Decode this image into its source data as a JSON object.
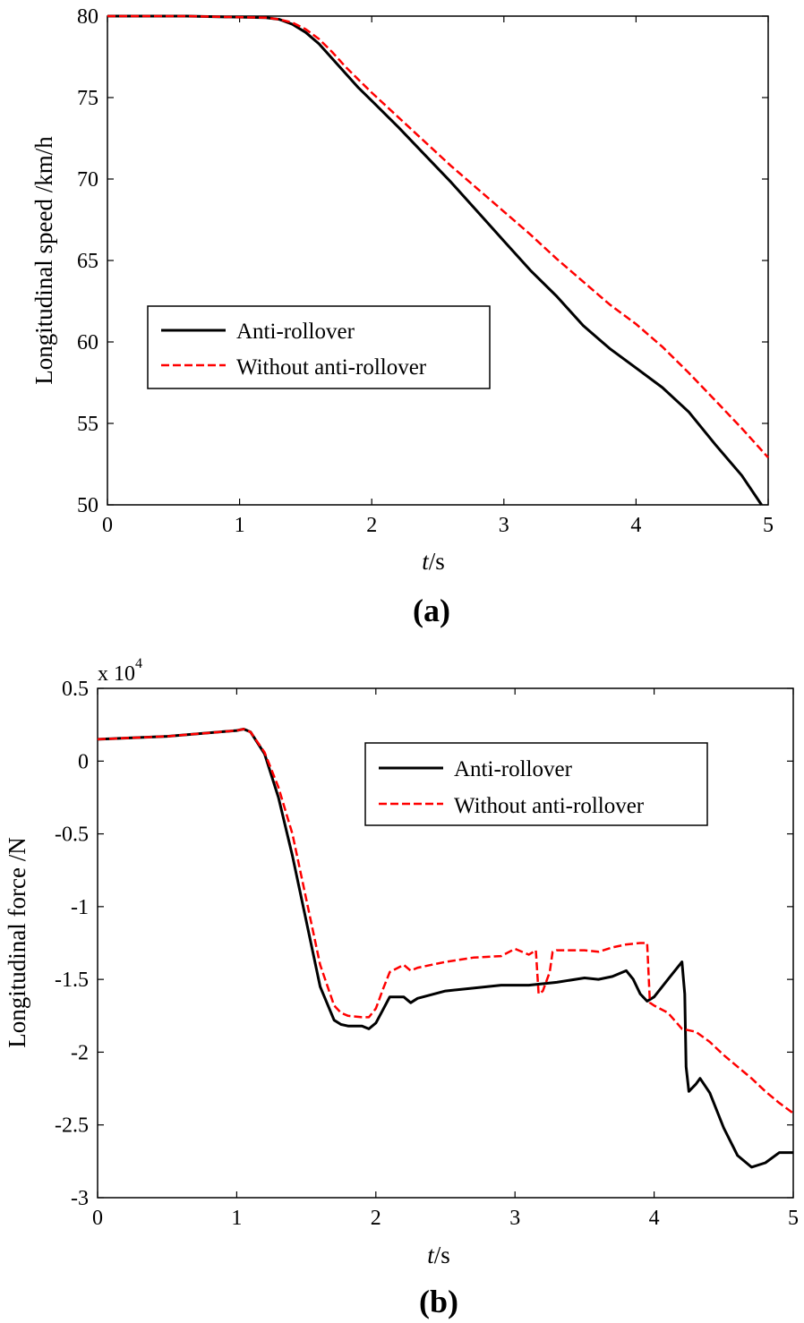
{
  "chart_data": [
    {
      "type": "line",
      "panel_label": "(a)",
      "xlabel_italic": "t",
      "xlabel_unit": "/s",
      "ylabel": "Longitudinal speed /km/h",
      "xlim": [
        0,
        5
      ],
      "ylim": [
        50,
        80
      ],
      "xticks": [
        "0",
        "1",
        "2",
        "3",
        "4",
        "5"
      ],
      "yticks": [
        "50",
        "55",
        "60",
        "65",
        "70",
        "75",
        "80"
      ],
      "grid": false,
      "legend_position": "center-left",
      "series": [
        {
          "name": "Anti-rollover",
          "color": "#000000",
          "style": "solid",
          "x": [
            0,
            0.6,
            1.2,
            1.3,
            1.4,
            1.5,
            1.6,
            1.7,
            1.8,
            1.9,
            2.0,
            2.2,
            2.4,
            2.6,
            2.8,
            3.0,
            3.2,
            3.4,
            3.6,
            3.8,
            4.0,
            4.2,
            4.4,
            4.6,
            4.8,
            4.95
          ],
          "y": [
            80,
            80,
            79.9,
            79.8,
            79.5,
            79.0,
            78.3,
            77.4,
            76.5,
            75.6,
            74.8,
            73.2,
            71.5,
            69.8,
            68.0,
            66.2,
            64.4,
            62.8,
            61.0,
            59.6,
            58.4,
            57.2,
            55.7,
            53.7,
            51.8,
            50.0
          ]
        },
        {
          "name": "Without anti-rollover",
          "color": "#ff0000",
          "style": "dashed",
          "x": [
            0,
            0.6,
            1.2,
            1.3,
            1.4,
            1.5,
            1.6,
            1.7,
            1.8,
            1.9,
            2.0,
            2.2,
            2.4,
            2.6,
            2.8,
            3.0,
            3.2,
            3.4,
            3.6,
            3.8,
            4.0,
            4.2,
            4.4,
            4.6,
            4.8,
            5.0
          ],
          "y": [
            80,
            80,
            79.9,
            79.8,
            79.6,
            79.2,
            78.6,
            77.8,
            76.9,
            76.1,
            75.3,
            73.8,
            72.3,
            70.8,
            69.4,
            68.0,
            66.6,
            65.1,
            63.7,
            62.3,
            61.1,
            59.7,
            58.1,
            56.4,
            54.7,
            52.9
          ]
        }
      ]
    },
    {
      "type": "line",
      "panel_label": "(b)",
      "xlabel_italic": "t",
      "xlabel_unit": "/s",
      "ylabel": "Longitudinal force /N",
      "exponent_label": "x 10",
      "exponent_power": "4",
      "xlim": [
        0,
        5
      ],
      "ylim": [
        -3,
        0.5
      ],
      "xticks": [
        "0",
        "1",
        "2",
        "3",
        "4",
        "5"
      ],
      "yticks": [
        "-3",
        "-2.5",
        "-2",
        "-1.5",
        "-1",
        "-0.5",
        "0",
        "0.5"
      ],
      "grid": false,
      "legend_position": "top-right",
      "series": [
        {
          "name": "Anti-rollover",
          "color": "#000000",
          "style": "solid",
          "x": [
            0,
            0.5,
            1.0,
            1.05,
            1.1,
            1.2,
            1.3,
            1.4,
            1.5,
            1.6,
            1.7,
            1.75,
            1.8,
            1.9,
            1.95,
            2.0,
            2.05,
            2.1,
            2.2,
            2.25,
            2.3,
            2.5,
            2.7,
            2.9,
            3.1,
            3.3,
            3.5,
            3.6,
            3.7,
            3.8,
            3.85,
            3.9,
            3.95,
            4.0,
            4.1,
            4.2,
            4.22,
            4.23,
            4.25,
            4.3,
            4.33,
            4.4,
            4.5,
            4.6,
            4.7,
            4.8,
            4.9,
            5.0
          ],
          "y": [
            0.15,
            0.17,
            0.21,
            0.22,
            0.2,
            0.05,
            -0.25,
            -0.65,
            -1.1,
            -1.55,
            -1.78,
            -1.81,
            -1.82,
            -1.82,
            -1.84,
            -1.8,
            -1.71,
            -1.62,
            -1.62,
            -1.66,
            -1.63,
            -1.58,
            -1.56,
            -1.54,
            -1.54,
            -1.52,
            -1.49,
            -1.5,
            -1.48,
            -1.44,
            -1.5,
            -1.6,
            -1.65,
            -1.62,
            -1.5,
            -1.38,
            -1.6,
            -2.1,
            -2.27,
            -2.22,
            -2.18,
            -2.28,
            -2.52,
            -2.71,
            -2.79,
            -2.76,
            -2.69,
            -2.69
          ]
        },
        {
          "name": "Without anti-rollover",
          "color": "#ff0000",
          "style": "dashed",
          "x": [
            0,
            0.5,
            1.0,
            1.05,
            1.1,
            1.2,
            1.3,
            1.4,
            1.5,
            1.6,
            1.7,
            1.75,
            1.8,
            1.9,
            1.95,
            2.0,
            2.05,
            2.1,
            2.2,
            2.25,
            2.3,
            2.5,
            2.7,
            2.9,
            3.0,
            3.1,
            3.15,
            3.17,
            3.2,
            3.25,
            3.27,
            3.3,
            3.5,
            3.6,
            3.7,
            3.8,
            3.9,
            3.95,
            3.97,
            4.0,
            4.1,
            4.2,
            4.3,
            4.4,
            4.5,
            4.6,
            4.7,
            4.8,
            4.9,
            5.0
          ],
          "y": [
            0.15,
            0.17,
            0.21,
            0.22,
            0.2,
            0.06,
            -0.18,
            -0.5,
            -0.95,
            -1.4,
            -1.68,
            -1.73,
            -1.75,
            -1.76,
            -1.76,
            -1.7,
            -1.57,
            -1.45,
            -1.4,
            -1.44,
            -1.42,
            -1.38,
            -1.35,
            -1.34,
            -1.29,
            -1.33,
            -1.3,
            -1.6,
            -1.58,
            -1.45,
            -1.31,
            -1.3,
            -1.3,
            -1.31,
            -1.28,
            -1.26,
            -1.25,
            -1.25,
            -1.66,
            -1.68,
            -1.73,
            -1.84,
            -1.86,
            -1.93,
            -2.02,
            -2.1,
            -2.18,
            -2.27,
            -2.35,
            -2.42
          ]
        }
      ]
    }
  ]
}
